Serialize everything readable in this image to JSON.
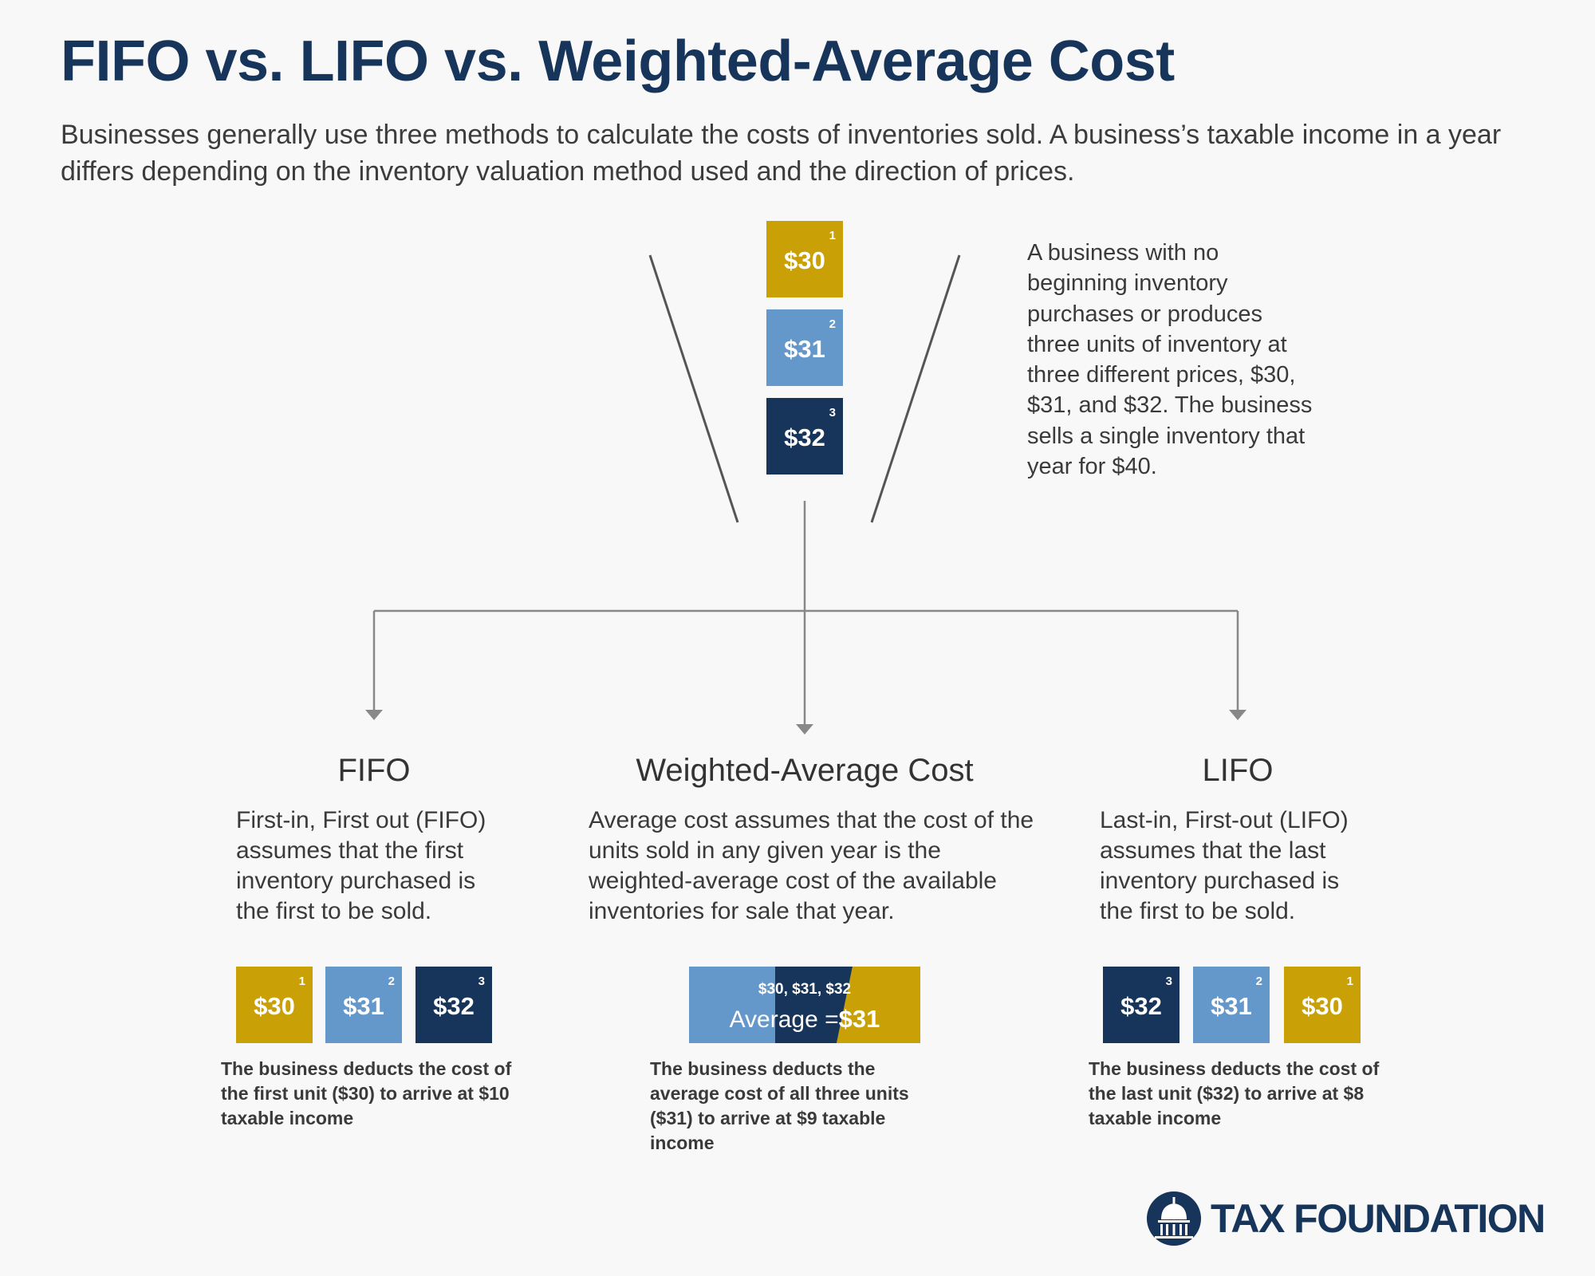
{
  "header": {
    "title": "FIFO vs. LIFO vs. Weighted-Average Cost",
    "subtitle": "Businesses generally use three methods to calculate the costs of inventories sold. A business’s taxable income in a year differs depending on the inventory valuation method used and the direction of prices."
  },
  "inventory": {
    "units": [
      {
        "num": "1",
        "price": "$30",
        "color": "#c9a005"
      },
      {
        "num": "2",
        "price": "$31",
        "color": "#6598ca"
      },
      {
        "num": "3",
        "price": "$32",
        "color": "#17355a"
      }
    ],
    "description": "A business with no beginning inventory purchases or produces three units of inventory at three different prices, $30, $31, and $32. The business sells a single inventory that year for $40."
  },
  "methods": {
    "fifo": {
      "heading": "FIFO",
      "description": "First-in, First out (FIFO) assumes that the first inventory purchased is the first to be sold.",
      "boxes": [
        {
          "num": "1",
          "price": "$30"
        },
        {
          "num": "2",
          "price": "$31"
        },
        {
          "num": "3",
          "price": "$32"
        }
      ],
      "note": "The business deducts the cost of the first unit ($30) to arrive at $10 taxable income"
    },
    "weighted": {
      "heading": "Weighted-Average Cost",
      "description": "Average cost assumes that the cost of the units sold in any given year is the weighted-average cost of the available inventories for sale that year.",
      "values": "$30, $31, $32",
      "average_label": "Average =",
      "average_value": "$31",
      "note": "The business deducts the average cost of all three units ($31) to arrive at $9 taxable income"
    },
    "lifo": {
      "heading": "LIFO",
      "description": "Last-in, First-out (LIFO) assumes that the last inventory purchased is the first to be sold.",
      "boxes": [
        {
          "num": "3",
          "price": "$32"
        },
        {
          "num": "2",
          "price": "$31"
        },
        {
          "num": "1",
          "price": "$30"
        }
      ],
      "note": "The business deducts the cost of the last unit ($32) to arrive at $8 taxable income"
    }
  },
  "logo": {
    "text": "TAX FOUNDATION",
    "color": "#17355a"
  },
  "colors": {
    "gold": "#c9a005",
    "light_blue": "#6598ca",
    "navy": "#17355a",
    "connector": "#888888"
  }
}
